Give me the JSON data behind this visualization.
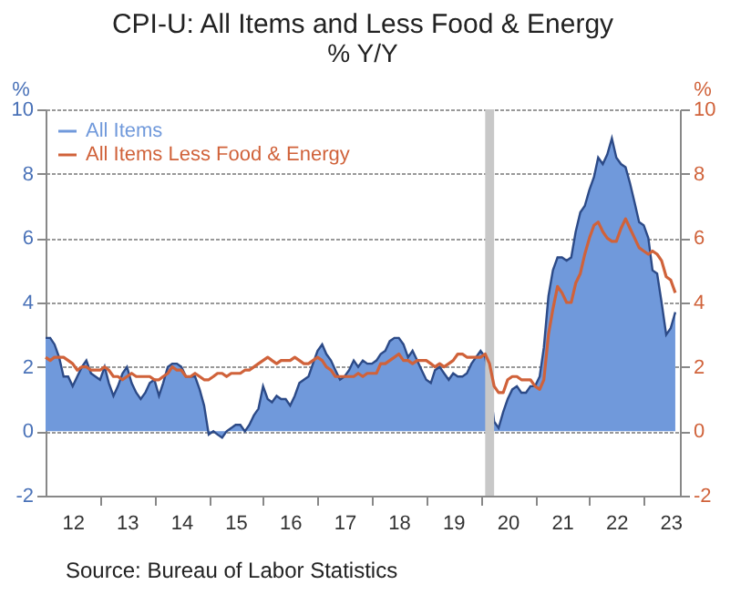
{
  "chart_data": {
    "type": "area",
    "title": "CPI-U: All Items and Less Food & Energy",
    "subtitle": "% Y/Y",
    "ylabel": "%",
    "y2label": "%",
    "annotations": [
      "Source:  Bureau of Labor Statistics"
    ],
    "x": [
      "2012-01",
      "2012-02",
      "2012-03",
      "2012-04",
      "2012-05",
      "2012-06",
      "2012-07",
      "2012-08",
      "2012-09",
      "2012-10",
      "2012-11",
      "2012-12",
      "2013-01",
      "2013-02",
      "2013-03",
      "2013-04",
      "2013-05",
      "2013-06",
      "2013-07",
      "2013-08",
      "2013-09",
      "2013-10",
      "2013-11",
      "2013-12",
      "2014-01",
      "2014-02",
      "2014-03",
      "2014-04",
      "2014-05",
      "2014-06",
      "2014-07",
      "2014-08",
      "2014-09",
      "2014-10",
      "2014-11",
      "2014-12",
      "2015-01",
      "2015-02",
      "2015-03",
      "2015-04",
      "2015-05",
      "2015-06",
      "2015-07",
      "2015-08",
      "2015-09",
      "2015-10",
      "2015-11",
      "2015-12",
      "2016-01",
      "2016-02",
      "2016-03",
      "2016-04",
      "2016-05",
      "2016-06",
      "2016-07",
      "2016-08",
      "2016-09",
      "2016-10",
      "2016-11",
      "2016-12",
      "2017-01",
      "2017-02",
      "2017-03",
      "2017-04",
      "2017-05",
      "2017-06",
      "2017-07",
      "2017-08",
      "2017-09",
      "2017-10",
      "2017-11",
      "2017-12",
      "2018-01",
      "2018-02",
      "2018-03",
      "2018-04",
      "2018-05",
      "2018-06",
      "2018-07",
      "2018-08",
      "2018-09",
      "2018-10",
      "2018-11",
      "2018-12",
      "2019-01",
      "2019-02",
      "2019-03",
      "2019-04",
      "2019-05",
      "2019-06",
      "2019-07",
      "2019-08",
      "2019-09",
      "2019-10",
      "2019-11",
      "2019-12",
      "2020-01",
      "2020-02",
      "2020-03",
      "2020-04",
      "2020-05",
      "2020-06",
      "2020-07",
      "2020-08",
      "2020-09",
      "2020-10",
      "2020-11",
      "2020-12",
      "2021-01",
      "2021-02",
      "2021-03",
      "2021-04",
      "2021-05",
      "2021-06",
      "2021-07",
      "2021-08",
      "2021-09",
      "2021-10",
      "2021-11",
      "2021-12",
      "2022-01",
      "2022-02",
      "2022-03",
      "2022-04",
      "2022-05",
      "2022-06",
      "2022-07",
      "2022-08",
      "2022-09",
      "2022-10",
      "2022-11",
      "2022-12",
      "2023-01",
      "2023-02",
      "2023-03",
      "2023-04",
      "2023-05",
      "2023-06",
      "2023-07",
      "2023-08"
    ],
    "series": [
      {
        "name": "All Items",
        "color": "#7099db",
        "values": [
          2.9,
          2.9,
          2.7,
          2.3,
          1.7,
          1.7,
          1.4,
          1.7,
          2.0,
          2.2,
          1.8,
          1.7,
          1.6,
          2.0,
          1.5,
          1.1,
          1.4,
          1.8,
          2.0,
          1.5,
          1.2,
          1.0,
          1.2,
          1.5,
          1.6,
          1.1,
          1.5,
          2.0,
          2.1,
          2.1,
          2.0,
          1.7,
          1.7,
          1.7,
          1.3,
          0.8,
          -0.1,
          0.0,
          -0.1,
          -0.2,
          0.0,
          0.1,
          0.2,
          0.2,
          0.0,
          0.2,
          0.5,
          0.7,
          1.4,
          1.0,
          0.9,
          1.1,
          1.0,
          1.0,
          0.8,
          1.1,
          1.5,
          1.6,
          1.7,
          2.1,
          2.5,
          2.7,
          2.4,
          2.2,
          1.9,
          1.6,
          1.7,
          1.9,
          2.2,
          2.0,
          2.2,
          2.1,
          2.1,
          2.2,
          2.4,
          2.5,
          2.8,
          2.9,
          2.9,
          2.7,
          2.3,
          2.5,
          2.2,
          1.9,
          1.6,
          1.5,
          1.9,
          2.0,
          1.8,
          1.6,
          1.8,
          1.7,
          1.7,
          1.8,
          2.1,
          2.3,
          2.5,
          2.3,
          1.5,
          0.3,
          0.1,
          0.6,
          1.0,
          1.3,
          1.4,
          1.2,
          1.2,
          1.4,
          1.4,
          1.7,
          2.6,
          4.2,
          5.0,
          5.4,
          5.4,
          5.3,
          5.4,
          6.2,
          6.8,
          7.0,
          7.5,
          7.9,
          8.5,
          8.3,
          8.6,
          9.1,
          8.5,
          8.3,
          8.2,
          7.7,
          7.1,
          6.5,
          6.4,
          6.0,
          5.0,
          4.9,
          4.0,
          3.0,
          3.2,
          3.7
        ]
      },
      {
        "name": "All Items Less Food & Energy",
        "type": "line",
        "axis": "y2",
        "color": "#d0623a",
        "values": [
          2.3,
          2.2,
          2.3,
          2.3,
          2.3,
          2.2,
          2.1,
          1.9,
          2.0,
          2.0,
          1.9,
          1.9,
          1.9,
          2.0,
          1.9,
          1.7,
          1.7,
          1.6,
          1.7,
          1.8,
          1.7,
          1.7,
          1.7,
          1.7,
          1.6,
          1.6,
          1.7,
          1.8,
          2.0,
          1.9,
          1.9,
          1.7,
          1.7,
          1.8,
          1.7,
          1.6,
          1.6,
          1.7,
          1.8,
          1.8,
          1.7,
          1.8,
          1.8,
          1.8,
          1.9,
          1.9,
          2.0,
          2.1,
          2.2,
          2.3,
          2.2,
          2.1,
          2.2,
          2.2,
          2.2,
          2.3,
          2.2,
          2.1,
          2.1,
          2.2,
          2.3,
          2.2,
          2.0,
          1.9,
          1.7,
          1.7,
          1.7,
          1.7,
          1.7,
          1.8,
          1.7,
          1.8,
          1.8,
          1.8,
          2.1,
          2.1,
          2.2,
          2.3,
          2.4,
          2.2,
          2.2,
          2.1,
          2.2,
          2.2,
          2.2,
          2.1,
          2.0,
          2.1,
          2.0,
          2.1,
          2.2,
          2.4,
          2.4,
          2.3,
          2.3,
          2.3,
          2.3,
          2.4,
          2.1,
          1.4,
          1.2,
          1.2,
          1.6,
          1.7,
          1.7,
          1.6,
          1.6,
          1.6,
          1.4,
          1.3,
          1.6,
          3.0,
          3.8,
          4.5,
          4.3,
          4.0,
          4.0,
          4.6,
          4.9,
          5.5,
          6.0,
          6.4,
          6.5,
          6.2,
          6.0,
          5.9,
          5.9,
          6.3,
          6.6,
          6.3,
          6.0,
          5.7,
          5.6,
          5.5,
          5.6,
          5.5,
          5.3,
          4.8,
          4.7,
          4.3
        ]
      }
    ],
    "xlim": [
      "2012-01",
      "2023-09"
    ],
    "xticks": [
      {
        "value": "2012-07",
        "label": "12"
      },
      {
        "value": "2013-01",
        "label": null
      },
      {
        "value": "2013-07",
        "label": "13"
      },
      {
        "value": "2014-01",
        "label": null
      },
      {
        "value": "2014-07",
        "label": "14"
      },
      {
        "value": "2015-01",
        "label": null
      },
      {
        "value": "2015-07",
        "label": "15"
      },
      {
        "value": "2016-01",
        "label": null
      },
      {
        "value": "2016-07",
        "label": "16"
      },
      {
        "value": "2017-01",
        "label": null
      },
      {
        "value": "2017-07",
        "label": "17"
      },
      {
        "value": "2018-01",
        "label": null
      },
      {
        "value": "2018-07",
        "label": "18"
      },
      {
        "value": "2019-01",
        "label": null
      },
      {
        "value": "2019-07",
        "label": "19"
      },
      {
        "value": "2020-01",
        "label": null
      },
      {
        "value": "2020-07",
        "label": "20"
      },
      {
        "value": "2021-01",
        "label": null
      },
      {
        "value": "2021-07",
        "label": "21"
      },
      {
        "value": "2022-01",
        "label": null
      },
      {
        "value": "2022-07",
        "label": "22"
      },
      {
        "value": "2023-01",
        "label": null
      },
      {
        "value": "2023-07",
        "label": "23"
      }
    ],
    "ylim": [
      -2,
      10
    ],
    "yticks": [
      -2,
      0,
      2,
      4,
      6,
      8,
      10
    ],
    "y2lim": [
      -2,
      10
    ],
    "y2ticks": [
      -2,
      0,
      2,
      4,
      6,
      8,
      10
    ],
    "bands": [
      {
        "axis": "x",
        "from": "2020-02",
        "to": "2020-04",
        "color": "#c8c8c8"
      }
    ],
    "grid": "y",
    "legend": "top left"
  }
}
